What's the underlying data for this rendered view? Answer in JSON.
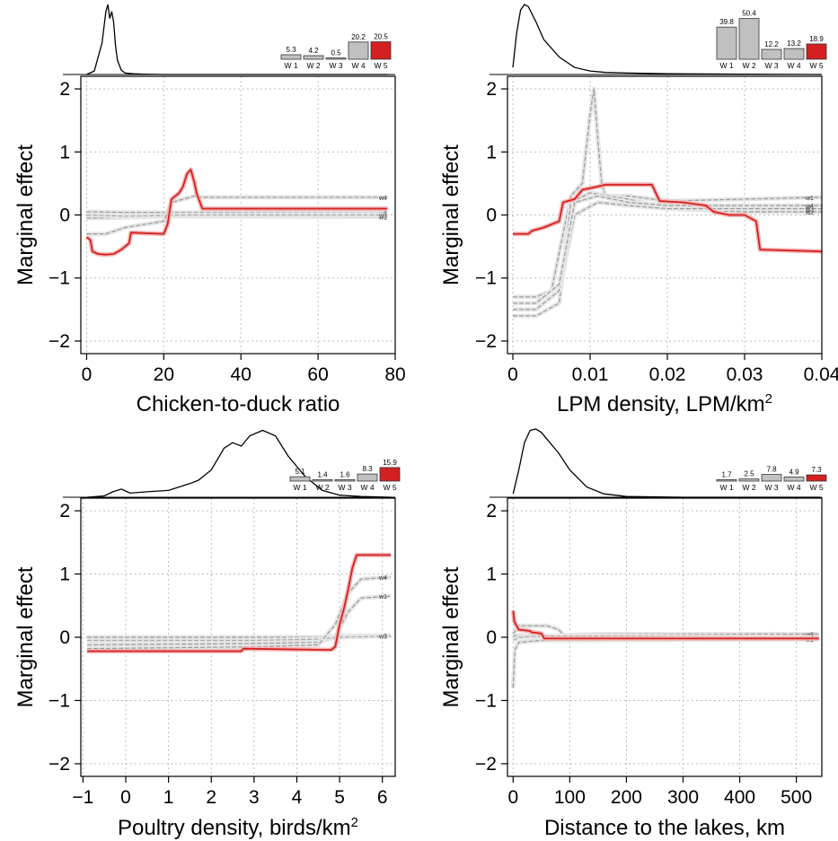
{
  "chart_data": [
    {
      "type": "line",
      "ylabel": "Marginal effect",
      "xlabel": "Chicken-to-duck ratio",
      "xlabel_sup": "",
      "xlim": [
        -1.5,
        80
      ],
      "ylim": [
        -2.2,
        2.2
      ],
      "xticks": [
        0,
        20,
        40,
        60,
        80
      ],
      "xtick_labels": [
        "0",
        "20",
        "40",
        "60",
        "80"
      ],
      "yticks": [
        -2,
        -1,
        0,
        1,
        2
      ],
      "ytick_labels": [
        "−2",
        "−1",
        "0",
        "1",
        "2"
      ],
      "grid": true,
      "density": {
        "x": [
          0,
          2,
          4,
          5,
          5.5,
          6,
          6.5,
          7,
          7.5,
          8,
          9,
          10,
          12,
          15,
          20,
          40,
          78
        ],
        "y": [
          0,
          0.05,
          0.45,
          0.9,
          1.0,
          0.8,
          0.9,
          0.75,
          0.4,
          0.2,
          0.06,
          0.02,
          0.01,
          0.005,
          0,
          0,
          0
        ]
      },
      "weights": [
        {
          "label": "W 1",
          "value": 5.3
        },
        {
          "label": "W 2",
          "value": 4.2
        },
        {
          "label": "W 3",
          "value": 0.5
        },
        {
          "label": "W 4",
          "value": 20.2
        },
        {
          "label": "W 5",
          "value": 20.5
        }
      ],
      "series": [
        {
          "name": "w1",
          "color": "#999999",
          "x": [
            0,
            1,
            10,
            20,
            25,
            78
          ],
          "y": [
            -0.05,
            -0.05,
            -0.04,
            -0.02,
            -0.02,
            -0.03
          ]
        },
        {
          "name": "w2",
          "color": "#999999",
          "x": [
            0,
            1,
            10,
            20,
            25,
            78
          ],
          "y": [
            0.05,
            0.05,
            0.04,
            0.04,
            0.04,
            0.03
          ]
        },
        {
          "name": "w3",
          "color": "#aaaaaa",
          "x": [
            0,
            1,
            10,
            20,
            25,
            78
          ],
          "y": [
            0.0,
            0.0,
            -0.02,
            -0.01,
            0.0,
            0.0
          ]
        },
        {
          "name": "w4",
          "color": "#999999",
          "x": [
            0,
            1,
            5,
            10,
            20,
            22,
            28,
            30,
            78
          ],
          "y": [
            -0.3,
            -0.3,
            -0.3,
            -0.2,
            -0.1,
            0.2,
            0.3,
            0.28,
            0.28
          ]
        },
        {
          "name": "w5",
          "color": "#d42020",
          "x": [
            0,
            1,
            1.5,
            3,
            5,
            7,
            9,
            11,
            11.5,
            20,
            21,
            22,
            24,
            25,
            26,
            27,
            28,
            28.5,
            30,
            78
          ],
          "y": [
            -0.35,
            -0.4,
            -0.58,
            -0.62,
            -0.63,
            -0.62,
            -0.55,
            -0.45,
            -0.28,
            -0.3,
            -0.15,
            0.25,
            0.35,
            0.45,
            0.65,
            0.72,
            0.5,
            0.35,
            0.1,
            0.1
          ]
        }
      ]
    },
    {
      "type": "line",
      "ylabel": "Marginal effect",
      "xlabel": "LPM density, LPM/km",
      "xlabel_sup": "2",
      "xlim": [
        -0.0007,
        0.04
      ],
      "ylim": [
        -2.2,
        2.2
      ],
      "xticks": [
        0,
        0.01,
        0.02,
        0.03,
        0.04
      ],
      "xtick_labels": [
        "0",
        "0.01",
        "0.02",
        "0.03",
        "0.04"
      ],
      "yticks": [
        -2,
        -1,
        0,
        1,
        2
      ],
      "ytick_labels": [
        "−2",
        "−1",
        "0",
        "1",
        "2"
      ],
      "grid": true,
      "density": {
        "x": [
          0,
          0.0005,
          0.001,
          0.0015,
          0.002,
          0.003,
          0.004,
          0.006,
          0.008,
          0.01,
          0.012,
          0.015,
          0.02,
          0.03,
          0.04
        ],
        "y": [
          0.1,
          0.6,
          0.92,
          1.0,
          0.97,
          0.75,
          0.5,
          0.25,
          0.1,
          0.05,
          0.03,
          0.02,
          0.01,
          0.005,
          0
        ]
      },
      "weights": [
        {
          "label": "W 1",
          "value": 39.8
        },
        {
          "label": "W 2",
          "value": 50.4
        },
        {
          "label": "W 3",
          "value": 12.2
        },
        {
          "label": "W 4",
          "value": 13.2
        },
        {
          "label": "W 5",
          "value": 18.9
        }
      ],
      "series": [
        {
          "name": "w1",
          "color": "#999999",
          "x": [
            0,
            0.003,
            0.005,
            0.006,
            0.0075,
            0.009,
            0.01,
            0.0105,
            0.011,
            0.0115,
            0.012,
            0.015,
            0.02,
            0.03,
            0.04
          ],
          "y": [
            -1.3,
            -1.3,
            -1.2,
            -0.6,
            0.3,
            0.5,
            1.6,
            2.0,
            1.2,
            0.5,
            0.3,
            0.3,
            0.22,
            0.25,
            0.28
          ]
        },
        {
          "name": "w2",
          "color": "#999999",
          "x": [
            0,
            0.003,
            0.006,
            0.0075,
            0.01,
            0.015,
            0.02,
            0.03,
            0.04
          ],
          "y": [
            -1.6,
            -1.6,
            -1.4,
            0.2,
            0.35,
            0.25,
            0.1,
            0.05,
            0.05
          ]
        },
        {
          "name": "w3",
          "color": "#999999",
          "x": [
            0,
            0.003,
            0.006,
            0.008,
            0.011,
            0.015,
            0.02,
            0.03,
            0.04
          ],
          "y": [
            -1.5,
            -1.5,
            -1.2,
            0.0,
            0.2,
            0.15,
            0.1,
            0.1,
            0.1
          ]
        },
        {
          "name": "w4",
          "color": "#999999",
          "x": [
            0,
            0.003,
            0.006,
            0.008,
            0.011,
            0.015,
            0.02,
            0.03,
            0.04
          ],
          "y": [
            -1.4,
            -1.4,
            -1.1,
            0.2,
            0.3,
            0.2,
            0.15,
            0.15,
            0.15
          ]
        },
        {
          "name": "w5",
          "color": "#d42020",
          "x": [
            0,
            0.002,
            0.0025,
            0.004,
            0.006,
            0.0065,
            0.008,
            0.009,
            0.011,
            0.012,
            0.018,
            0.019,
            0.022,
            0.025,
            0.026,
            0.028,
            0.03,
            0.0315,
            0.032,
            0.04
          ],
          "y": [
            -0.3,
            -0.3,
            -0.25,
            -0.2,
            -0.1,
            0.2,
            0.25,
            0.4,
            0.45,
            0.48,
            0.48,
            0.22,
            0.2,
            0.15,
            0.05,
            0.0,
            0.0,
            -0.1,
            -0.55,
            -0.58
          ]
        }
      ]
    },
    {
      "type": "line",
      "ylabel": "Marginal effect",
      "xlabel": "Poultry density, birds/km",
      "xlabel_sup": "2",
      "xlim": [
        -1.05,
        6.3
      ],
      "ylim": [
        -2.2,
        2.2
      ],
      "xticks": [
        -1,
        0,
        1,
        2,
        3,
        4,
        5,
        6
      ],
      "xtick_labels": [
        "−1",
        "0",
        "1",
        "2",
        "3",
        "4",
        "5",
        "6"
      ],
      "yticks": [
        -2,
        -1,
        0,
        1,
        2
      ],
      "ytick_labels": [
        "−2",
        "−1",
        "0",
        "1",
        "2"
      ],
      "grid": true,
      "density": {
        "x": [
          -0.9,
          -0.5,
          -0.3,
          -0.1,
          0.1,
          0.5,
          1.0,
          1.5,
          1.7,
          2.0,
          2.3,
          2.5,
          2.7,
          2.9,
          3.2,
          3.5,
          3.8,
          4.2,
          4.6,
          5.0,
          5.5,
          6.2
        ],
        "y": [
          0,
          0.02,
          0.08,
          0.12,
          0.06,
          0.08,
          0.1,
          0.2,
          0.25,
          0.4,
          0.72,
          0.8,
          0.75,
          0.9,
          0.98,
          0.9,
          0.6,
          0.3,
          0.1,
          0.03,
          0.01,
          0
        ]
      },
      "weights": [
        {
          "label": "W 1",
          "value": 5.1
        },
        {
          "label": "W 2",
          "value": 1.4
        },
        {
          "label": "W 3",
          "value": 1.6
        },
        {
          "label": "W 4",
          "value": 8.3
        },
        {
          "label": "W 5",
          "value": 15.9
        }
      ],
      "series": [
        {
          "name": "w1",
          "color": "#999999",
          "x": [
            -0.9,
            3,
            4.5,
            4.9,
            5.2,
            5.5,
            6.2
          ],
          "y": [
            -0.12,
            -0.1,
            -0.08,
            0.0,
            0.4,
            0.62,
            0.65
          ]
        },
        {
          "name": "w2",
          "color": "#999999",
          "x": [
            -0.9,
            3,
            4.5,
            5,
            6.2
          ],
          "y": [
            0.0,
            0.0,
            0.0,
            0.02,
            0.03
          ]
        },
        {
          "name": "w3",
          "color": "#aaaaaa",
          "x": [
            -0.9,
            3,
            4.5,
            5,
            6.2
          ],
          "y": [
            -0.05,
            -0.05,
            -0.03,
            0.0,
            0.02
          ]
        },
        {
          "name": "w4",
          "color": "#999999",
          "x": [
            -0.9,
            3,
            4.5,
            4.9,
            5.2,
            5.5,
            6.2
          ],
          "y": [
            -0.18,
            -0.15,
            -0.12,
            0.2,
            0.7,
            0.92,
            0.95
          ]
        },
        {
          "name": "w5",
          "color": "#d42020",
          "x": [
            -0.9,
            2.7,
            2.75,
            4.8,
            4.9,
            5.0,
            5.1,
            5.2,
            5.3,
            5.4,
            6.2
          ],
          "y": [
            -0.22,
            -0.22,
            -0.18,
            -0.2,
            -0.15,
            0.2,
            0.45,
            0.75,
            1.1,
            1.3,
            1.3
          ]
        }
      ]
    },
    {
      "type": "line",
      "ylabel": "Marginal effect",
      "xlabel": "Distance to the lakes, km",
      "xlabel_sup": "",
      "xlim": [
        -10,
        545
      ],
      "ylim": [
        -2.2,
        2.2
      ],
      "xticks": [
        0,
        100,
        200,
        300,
        400,
        500
      ],
      "xtick_labels": [
        "0",
        "100",
        "200",
        "300",
        "400",
        "500"
      ],
      "yticks": [
        -2,
        -1,
        0,
        1,
        2
      ],
      "ytick_labels": [
        "−2",
        "−1",
        "0",
        "1",
        "2"
      ],
      "grid": true,
      "density": {
        "x": [
          0,
          10,
          20,
          30,
          40,
          50,
          60,
          80,
          100,
          130,
          160,
          200,
          300,
          540
        ],
        "y": [
          0.05,
          0.4,
          0.8,
          0.98,
          1.0,
          0.95,
          0.85,
          0.65,
          0.4,
          0.15,
          0.05,
          0.01,
          0,
          0
        ]
      },
      "weights": [
        {
          "label": "W 1",
          "value": 1.7
        },
        {
          "label": "W 2",
          "value": 2.5
        },
        {
          "label": "W 3",
          "value": 7.8
        },
        {
          "label": "W 4",
          "value": 4.9
        },
        {
          "label": "W 5",
          "value": 7.3
        }
      ],
      "series": [
        {
          "name": "w1",
          "color": "#999999",
          "x": [
            0,
            3,
            10,
            50,
            540
          ],
          "y": [
            -0.8,
            -0.2,
            -0.08,
            -0.05,
            -0.03
          ]
        },
        {
          "name": "w2",
          "color": "#999999",
          "x": [
            0,
            10,
            50,
            540
          ],
          "y": [
            0.02,
            0.03,
            0.02,
            0.02
          ]
        },
        {
          "name": "w3",
          "color": "#999999",
          "x": [
            0,
            10,
            60,
            80,
            90,
            150,
            540
          ],
          "y": [
            0.05,
            0.18,
            0.18,
            0.12,
            0.03,
            0.05,
            0.05
          ]
        },
        {
          "name": "w4",
          "color": "#aaaaaa",
          "x": [
            0,
            10,
            50,
            150,
            540
          ],
          "y": [
            -0.05,
            0.0,
            0.02,
            0.02,
            0.0
          ]
        },
        {
          "name": "w5",
          "color": "#d42020",
          "x": [
            0,
            2,
            8,
            10,
            30,
            32,
            50,
            55,
            540
          ],
          "y": [
            0.42,
            0.25,
            0.15,
            0.12,
            0.1,
            0.08,
            0.06,
            -0.02,
            -0.02
          ]
        }
      ]
    }
  ]
}
